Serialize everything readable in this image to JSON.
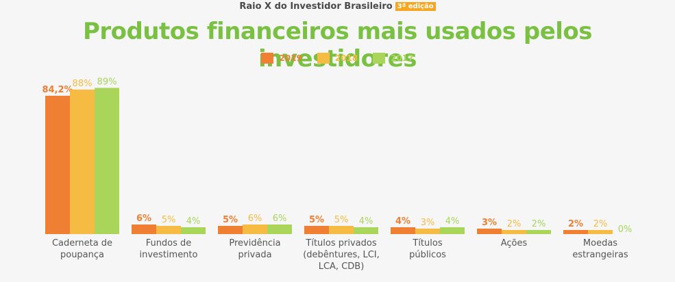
{
  "header": {
    "text": "Raio X do Investidor Brasileiro",
    "badge": "3ª edição"
  },
  "chart_data": {
    "type": "bar",
    "title": "Produtos financeiros mais usados pelos investidores",
    "xlabel": "",
    "ylabel": "",
    "ylim": [
      0,
      100
    ],
    "grid": false,
    "legend_position": "top-center",
    "categories": [
      "Caderneta de\npoupança",
      "Fundos de\ninvestimento",
      "Previdência\nprivada",
      "Títulos privados\n(debêntures, LCI,\nLCA, CDB)",
      "Títulos\npúblicos",
      "Ações",
      "Moedas\nestrangeiras"
    ],
    "series": [
      {
        "name": "2019",
        "color": "#ee7f33",
        "values": [
          84.2,
          6,
          5,
          5,
          4,
          3,
          2
        ],
        "labels": [
          "84,2%",
          "6%",
          "5%",
          "5%",
          "4%",
          "3%",
          "2%"
        ]
      },
      {
        "name": "2018",
        "color": "#f5bb42",
        "values": [
          88,
          5,
          6,
          5,
          3,
          2,
          2
        ],
        "labels": [
          "88%",
          "5%",
          "6%",
          "5%",
          "3%",
          "2%",
          "2%"
        ]
      },
      {
        "name": "2017",
        "color": "#a8d55a",
        "values": [
          89,
          4,
          6,
          4,
          4,
          2,
          0
        ],
        "labels": [
          "89%",
          "4%",
          "6%",
          "4%",
          "4%",
          "2%",
          "0%"
        ]
      }
    ]
  }
}
